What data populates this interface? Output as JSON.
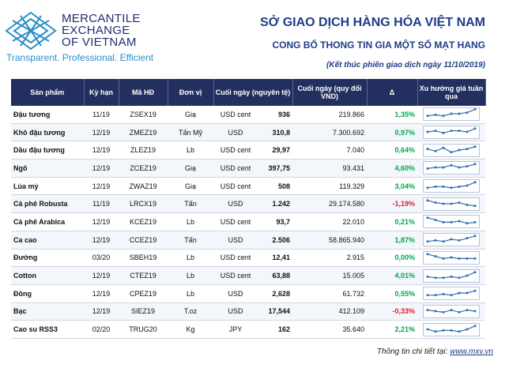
{
  "logo": {
    "lines": [
      "MERCANTILE",
      "EXCHANGE",
      "OF VIETNAM"
    ],
    "tagline": "Transparent. Professional. Efficient"
  },
  "header": {
    "title": "SỞ GIAO DỊCH HÀNG HÓA VIỆT NAM",
    "subtitle": "CONG BỐ THONG TIN GIA MỘT SỐ MẠT HANG",
    "note": "(Kết thúc phiên giao dịch ngày 11/10/2019)"
  },
  "table": {
    "columns": [
      "Sản phẩm",
      "Kỳ hạn",
      "Mã HĐ",
      "Đơn vị",
      "Cuối ngày (nguyên tệ)",
      "Cuối ngày (quy đổi VND)",
      "Δ",
      "Xu hướng giá tuần qua"
    ],
    "rows": [
      {
        "cells": [
          "Đậu tương",
          "11/19",
          "ZSEX19",
          "Giạ",
          "USD cent",
          "936",
          "219.866",
          "1,35%"
        ],
        "delta_color": "#00a651",
        "trend": [
          3,
          4,
          3,
          5,
          5,
          6,
          9
        ]
      },
      {
        "cells": [
          "Khô đậu tương",
          "12/19",
          "ZMEZ19",
          "Tấn Mỹ",
          "USD",
          "310,8",
          "7.300.692",
          "0,97%"
        ],
        "delta_color": "#00a651",
        "trend": [
          5,
          6,
          4,
          6,
          6,
          5,
          8
        ]
      },
      {
        "cells": [
          "Dầu đậu tương",
          "12/19",
          "ZLEZ19",
          "Lb",
          "USD cent",
          "29,97",
          "7.040",
          "0,64%"
        ],
        "delta_color": "#00a651",
        "trend": [
          6,
          4,
          7,
          3,
          5,
          6,
          8
        ]
      },
      {
        "cells": [
          "Ngô",
          "12/19",
          "ZCEZ19",
          "Giạ",
          "USD cent",
          "397,75",
          "93.431",
          "4,60%"
        ],
        "delta_color": "#00a651",
        "trend": [
          4,
          5,
          5,
          7,
          5,
          6,
          8
        ]
      },
      {
        "cells": [
          "Lúa mỳ",
          "12/19",
          "ZWAZ19",
          "Giạ",
          "USD cent",
          "508",
          "119.329",
          "3,04%"
        ],
        "delta_color": "#00a651",
        "trend": [
          3,
          4,
          4,
          3,
          4,
          5,
          8
        ]
      },
      {
        "cells": [
          "Cà phê Robusta",
          "11/19",
          "LRCX19",
          "Tấn",
          "USD",
          "1.242",
          "29.174.580",
          "-1,19%"
        ],
        "delta_color": "#e31e24",
        "trend": [
          8,
          6,
          5,
          5,
          6,
          4,
          3
        ]
      },
      {
        "cells": [
          "Cà phê Arabica",
          "12/19",
          "KCEZ19",
          "Lb",
          "USD cent",
          "93,7",
          "22.010",
          "0,21%"
        ],
        "delta_color": "#00a651",
        "trend": [
          8,
          6,
          4,
          4,
          5,
          3,
          4
        ]
      },
      {
        "cells": [
          "Ca cao",
          "12/19",
          "CCEZ19",
          "Tấn",
          "USD",
          "2.506",
          "58.865.940",
          "1,87%"
        ],
        "delta_color": "#00a651",
        "trend": [
          3,
          4,
          3,
          5,
          4,
          6,
          8
        ]
      },
      {
        "cells": [
          "Đường",
          "03/20",
          "SBEH19",
          "Lb",
          "USD cent",
          "12,41",
          "2.915",
          "0,00%"
        ],
        "delta_color": "#00a651",
        "trend": [
          8,
          6,
          4,
          5,
          4,
          4,
          4
        ]
      },
      {
        "cells": [
          "Cotton",
          "12/19",
          "CTEZ19",
          "Lb",
          "USD cent",
          "63,88",
          "15.005",
          "4,01%"
        ],
        "delta_color": "#00a651",
        "trend": [
          4,
          3,
          3,
          4,
          3,
          5,
          8
        ]
      },
      {
        "cells": [
          "Đồng",
          "12/19",
          "CPEZ19",
          "Lb",
          "USD",
          "2,628",
          "61.732",
          "0,55%"
        ],
        "delta_color": "#00a651",
        "trend": [
          3,
          3,
          4,
          3,
          5,
          5,
          7
        ]
      },
      {
        "cells": [
          "Bạc",
          "12/19",
          "SIEZ19",
          "T.oz",
          "USD",
          "17,544",
          "412.109",
          "-0,33%"
        ],
        "delta_color": "#e31e24",
        "trend": [
          6,
          5,
          4,
          6,
          4,
          6,
          5
        ]
      },
      {
        "cells": [
          "Cao su RSS3",
          "02/20",
          "TRUG20",
          "Kg",
          "JPY",
          "162",
          "35.640",
          "2,21%"
        ],
        "delta_color": "#00a651",
        "trend": [
          5,
          3,
          4,
          4,
          3,
          5,
          8
        ]
      }
    ]
  },
  "footer": {
    "label": "Thông tin chi tiết tại:",
    "link": "www.mxv.vn"
  }
}
